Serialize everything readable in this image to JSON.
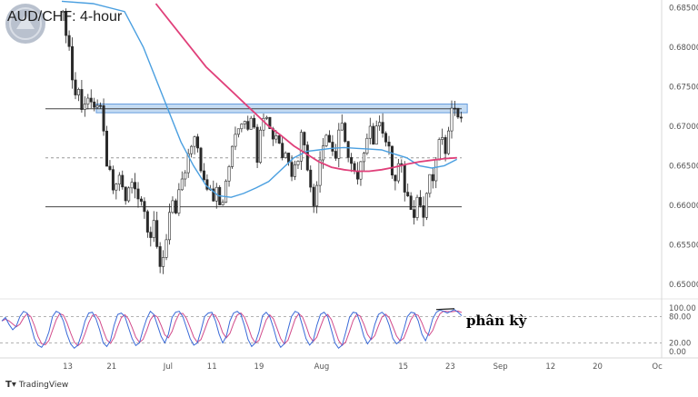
{
  "brand": {
    "text": "TradingView",
    "icon": "tradingview-logo-icon"
  },
  "chart_data": [
    {
      "type": "candlestick",
      "title": "AUD/CHF: 4-hour",
      "ylim": [
        0.6485,
        0.6855
      ],
      "ytick_values": [
        0.65,
        0.655,
        0.66,
        0.665,
        0.67,
        0.675,
        0.68,
        0.685
      ],
      "ytick_labels": [
        "0.65000",
        "0.65500",
        "0.66000",
        "0.66500",
        "0.67000",
        "0.67500",
        "0.68000",
        "0.68500"
      ],
      "x_ticks": [
        {
          "label": "13",
          "pos": 0.05
        },
        {
          "label": "21",
          "pos": 0.12
        },
        {
          "label": "Jul",
          "pos": 0.21
        },
        {
          "label": "11",
          "pos": 0.28
        },
        {
          "label": "19",
          "pos": 0.355
        },
        {
          "label": "Aug",
          "pos": 0.455
        },
        {
          "label": "15",
          "pos": 0.585
        },
        {
          "label": "23",
          "pos": 0.66
        },
        {
          "label": "Sep",
          "pos": 0.74
        },
        {
          "label": "12",
          "pos": 0.82
        },
        {
          "label": "20",
          "pos": 0.895
        },
        {
          "label": "Oc",
          "pos": 0.99
        }
      ],
      "close_path": [
        [
          0,
          0.684
        ],
        [
          2,
          0.68
        ],
        [
          3,
          0.676
        ],
        [
          4,
          0.674
        ],
        [
          5,
          0.6745
        ],
        [
          6,
          0.6725
        ],
        [
          7,
          0.673
        ],
        [
          8,
          0.6735
        ],
        [
          9,
          0.6725
        ],
        [
          10,
          0.672
        ],
        [
          11,
          0.673
        ],
        [
          12,
          0.672
        ],
        [
          13,
          0.669
        ],
        [
          14,
          0.665
        ],
        [
          15,
          0.664
        ],
        [
          16,
          0.662
        ],
        [
          17,
          0.6625
        ],
        [
          18,
          0.664
        ],
        [
          19,
          0.662
        ],
        [
          20,
          0.6605
        ],
        [
          21,
          0.662
        ],
        [
          22,
          0.663
        ],
        [
          23,
          0.6625
        ],
        [
          24,
          0.661
        ],
        [
          25,
          0.6605
        ],
        [
          26,
          0.6598
        ],
        [
          27,
          0.657
        ],
        [
          28,
          0.656
        ],
        [
          29,
          0.6575
        ],
        [
          30,
          0.6545
        ],
        [
          31,
          0.6525
        ],
        [
          32,
          0.6535
        ],
        [
          33,
          0.656
        ],
        [
          34,
          0.659
        ],
        [
          35,
          0.66
        ],
        [
          36,
          0.6585
        ],
        [
          37,
          0.662
        ],
        [
          38,
          0.663
        ],
        [
          39,
          0.664
        ],
        [
          40,
          0.666
        ],
        [
          41,
          0.6675
        ],
        [
          42,
          0.669
        ],
        [
          43,
          0.667
        ],
        [
          44,
          0.664
        ],
        [
          45,
          0.6635
        ],
        [
          46,
          0.662
        ],
        [
          47,
          0.6625
        ],
        [
          48,
          0.661
        ],
        [
          49,
          0.6625
        ],
        [
          50,
          0.6605
        ],
        [
          51,
          0.66
        ],
        [
          52,
          0.663
        ],
        [
          53,
          0.665
        ],
        [
          54,
          0.667
        ],
        [
          55,
          0.669
        ],
        [
          56,
          0.67
        ],
        [
          57,
          0.6705
        ],
        [
          58,
          0.671
        ],
        [
          59,
          0.67
        ],
        [
          60,
          0.6715
        ],
        [
          61,
          0.6695
        ],
        [
          62,
          0.666
        ],
        [
          63,
          0.67
        ],
        [
          64,
          0.6715
        ],
        [
          65,
          0.671
        ],
        [
          66,
          0.67
        ],
        [
          67,
          0.6685
        ],
        [
          68,
          0.669
        ],
        [
          69,
          0.668
        ],
        [
          70,
          0.666
        ],
        [
          71,
          0.667
        ],
        [
          72,
          0.666
        ],
        [
          73,
          0.664
        ],
        [
          74,
          0.665
        ],
        [
          75,
          0.666
        ],
        [
          76,
          0.669
        ],
        [
          77,
          0.668
        ],
        [
          78,
          0.665
        ],
        [
          79,
          0.662
        ],
        [
          80,
          0.66
        ],
        [
          81,
          0.663
        ],
        [
          82,
          0.666
        ],
        [
          83,
          0.668
        ],
        [
          84,
          0.669
        ],
        [
          85,
          0.668
        ],
        [
          86,
          0.667
        ],
        [
          87,
          0.666
        ],
        [
          88,
          0.669
        ],
        [
          89,
          0.67
        ],
        [
          90,
          0.6685
        ],
        [
          91,
          0.666
        ],
        [
          92,
          0.665
        ],
        [
          93,
          0.664
        ],
        [
          94,
          0.663
        ],
        [
          95,
          0.665
        ],
        [
          96,
          0.667
        ],
        [
          97,
          0.669
        ],
        [
          98,
          0.67
        ],
        [
          99,
          0.668
        ],
        [
          100,
          0.6695
        ],
        [
          101,
          0.671
        ],
        [
          102,
          0.6695
        ],
        [
          103,
          0.668
        ],
        [
          104,
          0.667
        ],
        [
          105,
          0.664
        ],
        [
          106,
          0.663
        ],
        [
          107,
          0.665
        ],
        [
          108,
          0.6645
        ],
        [
          109,
          0.662
        ],
        [
          110,
          0.661
        ],
        [
          111,
          0.66
        ],
        [
          112,
          0.659
        ],
        [
          113,
          0.661
        ],
        [
          114,
          0.66
        ],
        [
          115,
          0.6585
        ],
        [
          116,
          0.661
        ],
        [
          117,
          0.664
        ],
        [
          118,
          0.6625
        ],
        [
          119,
          0.666
        ],
        [
          120,
          0.668
        ],
        [
          121,
          0.668
        ],
        [
          122,
          0.667
        ],
        [
          123,
          0.67
        ],
        [
          124,
          0.672
        ],
        [
          125,
          0.6725
        ],
        [
          126,
          0.6715
        ],
        [
          127,
          0.6705
        ]
      ],
      "n_bars": 128,
      "ema_fast": [
        [
          0,
          0.6858
        ],
        [
          10,
          0.6855
        ],
        [
          20,
          0.6845
        ],
        [
          26,
          0.68
        ],
        [
          30,
          0.676
        ],
        [
          34,
          0.672
        ],
        [
          38,
          0.668
        ],
        [
          42,
          0.665
        ],
        [
          46,
          0.6625
        ],
        [
          50,
          0.6612
        ],
        [
          54,
          0.661
        ],
        [
          58,
          0.6615
        ],
        [
          62,
          0.6622
        ],
        [
          66,
          0.663
        ],
        [
          70,
          0.6645
        ],
        [
          74,
          0.666
        ],
        [
          78,
          0.6668
        ],
        [
          82,
          0.667
        ],
        [
          86,
          0.6672
        ],
        [
          90,
          0.6673
        ],
        [
          94,
          0.6672
        ],
        [
          98,
          0.6671
        ],
        [
          102,
          0.667
        ],
        [
          106,
          0.6665
        ],
        [
          110,
          0.666
        ],
        [
          114,
          0.665
        ],
        [
          118,
          0.6647
        ],
        [
          122,
          0.665
        ],
        [
          126,
          0.6658
        ]
      ],
      "ema_slow": [
        [
          30,
          0.6855
        ],
        [
          34,
          0.6835
        ],
        [
          38,
          0.6815
        ],
        [
          42,
          0.6795
        ],
        [
          46,
          0.6775
        ],
        [
          50,
          0.676
        ],
        [
          54,
          0.6745
        ],
        [
          58,
          0.673
        ],
        [
          62,
          0.6715
        ],
        [
          66,
          0.67
        ],
        [
          70,
          0.6688
        ],
        [
          74,
          0.6675
        ],
        [
          78,
          0.6665
        ],
        [
          82,
          0.6655
        ],
        [
          86,
          0.6648
        ],
        [
          90,
          0.6645
        ],
        [
          94,
          0.6643
        ],
        [
          98,
          0.6643
        ],
        [
          102,
          0.6645
        ],
        [
          106,
          0.6648
        ],
        [
          110,
          0.6652
        ],
        [
          114,
          0.6655
        ],
        [
          118,
          0.6657
        ],
        [
          122,
          0.6659
        ],
        [
          126,
          0.666
        ]
      ],
      "resistance_zone": [
        0.6717,
        0.6728
      ],
      "resistance_line": 0.6722,
      "support_line": 0.6598,
      "mid_line": 0.666,
      "zone_x_range": [
        11,
        127
      ],
      "colors": {
        "up": "#2a2a2a",
        "down": "#2a2a2a",
        "ema_fast": "#4a9fe0",
        "ema_slow": "#e0407a",
        "zone": "#bcd6f2",
        "zone_edge": "#4a8ad8",
        "line": "#444444",
        "divergence": "#2a2a2a"
      },
      "divergence_segment": [
        [
          109,
          0.6735
        ],
        [
          124,
          0.674
        ]
      ]
    },
    {
      "type": "line",
      "name_visible": false,
      "ylim": [
        -10,
        110
      ],
      "ytick_values": [
        100,
        80,
        20,
        0
      ],
      "ytick_labels": [
        "100.00",
        "80.00",
        "20.00",
        "0.00"
      ],
      "k_values": [
        70,
        78,
        62,
        50,
        58,
        80,
        92,
        88,
        60,
        30,
        15,
        10,
        22,
        45,
        80,
        92,
        88,
        70,
        40,
        18,
        8,
        15,
        40,
        70,
        88,
        90,
        75,
        50,
        20,
        12,
        25,
        60,
        85,
        88,
        80,
        55,
        30,
        14,
        20,
        50,
        75,
        92,
        85,
        60,
        35,
        20,
        40,
        78,
        90,
        92,
        80,
        55,
        30,
        15,
        20,
        48,
        80,
        88,
        90,
        70,
        40,
        20,
        35,
        70,
        88,
        92,
        85,
        60,
        28,
        12,
        20,
        45,
        82,
        90,
        80,
        55,
        25,
        10,
        18,
        50,
        80,
        92,
        88,
        60,
        30,
        15,
        25,
        60,
        85,
        90,
        80,
        50,
        20,
        8,
        15,
        45,
        78,
        90,
        88,
        65,
        35,
        18,
        30,
        62,
        85,
        90,
        82,
        60,
        30,
        18,
        25,
        50,
        80,
        90,
        88,
        70,
        40,
        25,
        45,
        75,
        90,
        95,
        92,
        88,
        92,
        96,
        90,
        82
      ],
      "d_offset": 3,
      "annotation": "phân kỳ",
      "colors": {
        "k": "#3a6ad8",
        "d": "#d24a8a",
        "guide": "#9a9a9a"
      }
    }
  ]
}
